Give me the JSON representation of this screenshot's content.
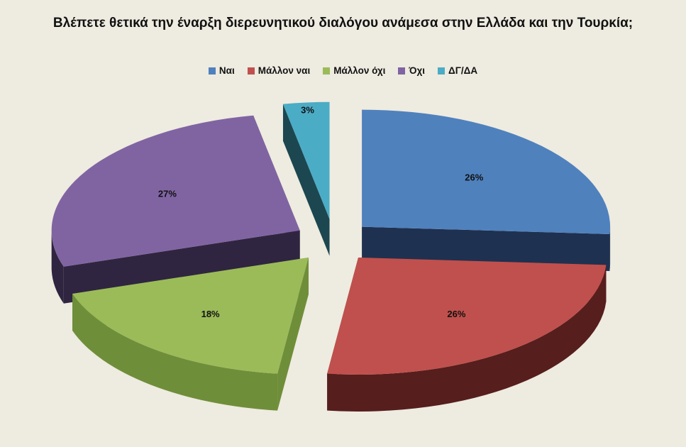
{
  "colors": {
    "background": "#EEEBE0"
  },
  "chart_data": {
    "type": "pie",
    "title": "Βλέπετε θετικά την έναρξη διερευνητικού διαλόγου ανάμεσα στην Ελλάδα και την Τουρκία;",
    "legend_position": "top",
    "style": "3d-exploded",
    "slices": [
      {
        "label": "Ναι",
        "value": 26,
        "value_label": "26%",
        "color": "#4F81BD",
        "side": "#1F3150"
      },
      {
        "label": "Μάλλον ναι",
        "value": 26,
        "value_label": "26%",
        "color": "#C0504D",
        "side": "#561E1D"
      },
      {
        "label": "Μάλλον όχι",
        "value": 18,
        "value_label": "18%",
        "color": "#9BBB59",
        "side": "#6F8E3A"
      },
      {
        "label": "Όχι",
        "value": 27,
        "value_label": "27%",
        "color": "#8064A2",
        "side": "#2F2540"
      },
      {
        "label": "ΔΓ/ΔΑ",
        "value": 3,
        "value_label": "3%",
        "color": "#4BACC6",
        "side": "#1C4750"
      }
    ]
  }
}
